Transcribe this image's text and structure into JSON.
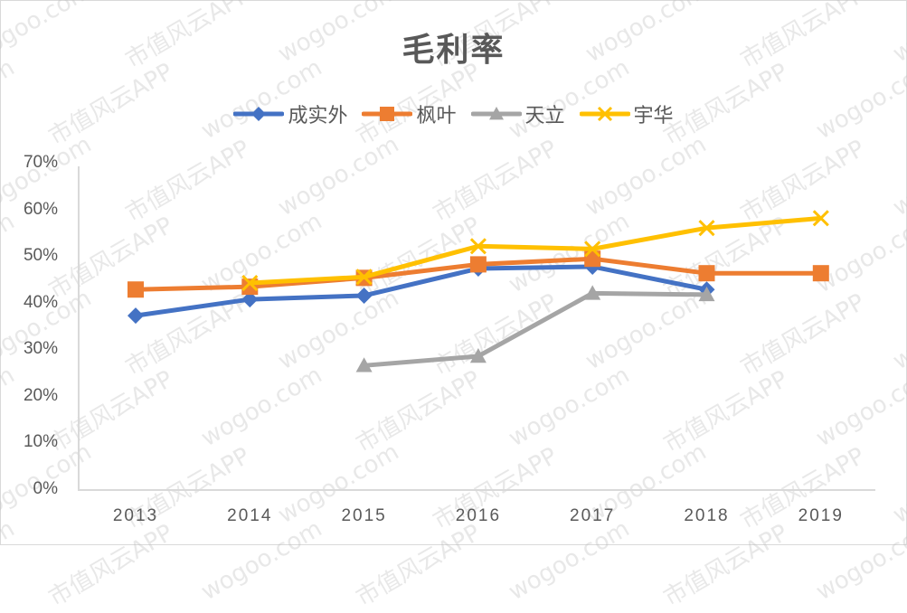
{
  "chart_data": {
    "type": "line",
    "title": "毛利率",
    "xlabel": "",
    "ylabel": "",
    "categories": [
      "2013",
      "2014",
      "2015",
      "2016",
      "2017",
      "2018",
      "2019"
    ],
    "ylim": [
      0,
      70
    ],
    "yticks": [
      "0%",
      "10%",
      "20%",
      "30%",
      "40%",
      "50%",
      "60%",
      "70%"
    ],
    "grid": false,
    "legend_position": "top",
    "series": [
      {
        "name": "成实外",
        "color": "#4472C4",
        "marker": "diamond",
        "values": [
          37.4,
          40.9,
          41.7,
          47.5,
          47.9,
          43.0,
          null
        ]
      },
      {
        "name": "枫叶",
        "color": "#ED7D31",
        "marker": "square",
        "values": [
          43.0,
          43.6,
          45.5,
          48.4,
          49.6,
          46.5,
          46.5
        ]
      },
      {
        "name": "天立",
        "color": "#A5A5A5",
        "marker": "triangle",
        "values": [
          null,
          null,
          26.7,
          28.7,
          42.2,
          41.9,
          null
        ]
      },
      {
        "name": "宇华",
        "color": "#FFC000",
        "marker": "x",
        "values": [
          null,
          44.4,
          45.7,
          52.3,
          51.7,
          56.2,
          58.3
        ]
      }
    ]
  },
  "watermark": [
    "wogoo.com",
    "市值风云APP"
  ]
}
